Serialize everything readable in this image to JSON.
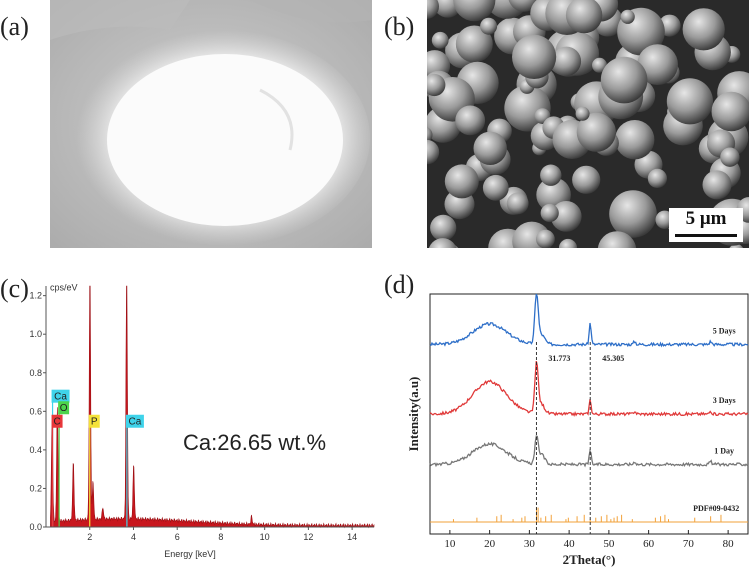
{
  "panels": {
    "a": {
      "label": "(a)"
    },
    "b": {
      "label": "(b)",
      "scale_bar": "5 μm"
    },
    "c": {
      "label": "(c)"
    },
    "d": {
      "label": "(d)"
    }
  },
  "chart_data": [
    {
      "type": "line",
      "panel": "c",
      "ylabel": "cps/eV",
      "xlabel": "Energy [keV]",
      "xlim": [
        0,
        15
      ],
      "ylim": [
        0,
        1.25
      ],
      "x_ticks": [
        "2",
        "4",
        "6",
        "8",
        "10",
        "12",
        "14"
      ],
      "y_ticks": [
        "0.0",
        "0.2",
        "0.4",
        "0.6",
        "0.8",
        "1.0",
        "1.2"
      ],
      "grid": false,
      "peaks": [
        {
          "x": 0.28,
          "y": 0.52
        },
        {
          "x": 0.52,
          "y": 0.6
        },
        {
          "x": 1.25,
          "y": 0.3
        },
        {
          "x": 2.01,
          "y": 1.3
        },
        {
          "x": 2.15,
          "y": 0.2
        },
        {
          "x": 2.6,
          "y": 0.06
        },
        {
          "x": 3.69,
          "y": 1.3
        },
        {
          "x": 4.01,
          "y": 0.28
        },
        {
          "x": 9.4,
          "y": 0.04
        }
      ],
      "element_tags": [
        {
          "text": "Ca",
          "x": 0.3,
          "y": 0.65,
          "color": "#3fd3ea"
        },
        {
          "text": "O",
          "x": 0.6,
          "y": 0.59,
          "color": "#4cd44c"
        },
        {
          "text": "C",
          "x": 0.3,
          "y": 0.52,
          "color": "#e8373a"
        },
        {
          "text": "P",
          "x": 2.0,
          "y": 0.52,
          "color": "#f4e23a"
        },
        {
          "text": "Ca",
          "x": 3.7,
          "y": 0.52,
          "color": "#3fd3ea"
        }
      ],
      "annotation": "Ca:26.65 wt.%",
      "fill_color": "#c8161d"
    },
    {
      "type": "line",
      "panel": "d",
      "xlabel": "2Theta(°)",
      "ylabel": "Intensity(a.u)",
      "xlim": [
        5,
        85
      ],
      "x_ticks": [
        "10",
        "20",
        "30",
        "40",
        "50",
        "60",
        "70",
        "80"
      ],
      "series": [
        {
          "name": "5 Days",
          "color": "#2e6fc8",
          "offset": 0.79
        },
        {
          "name": "3 Days",
          "color": "#e03a3a",
          "offset": 0.5
        },
        {
          "name": "1 Day",
          "color": "#777777",
          "offset": 0.29
        },
        {
          "name": "PDF#09-0432",
          "color": "#f2a23a",
          "offset": 0.05
        }
      ],
      "peak_labels": [
        {
          "text": "31.773",
          "x": 31.773
        },
        {
          "text": "45.305",
          "x": 45.305
        }
      ],
      "reference_peaks": [
        10.9,
        16.8,
        21.8,
        22.9,
        25.9,
        28.1,
        28.9,
        31.8,
        32.2,
        32.9,
        34.1,
        35.5,
        39.2,
        39.8,
        42.0,
        43.8,
        45.3,
        46.7,
        48.1,
        49.5,
        50.5,
        51.3,
        52.1,
        53.2,
        55.9,
        61.7,
        63.0,
        64.1,
        65.0,
        71.6,
        75.6,
        78.2
      ]
    }
  ]
}
